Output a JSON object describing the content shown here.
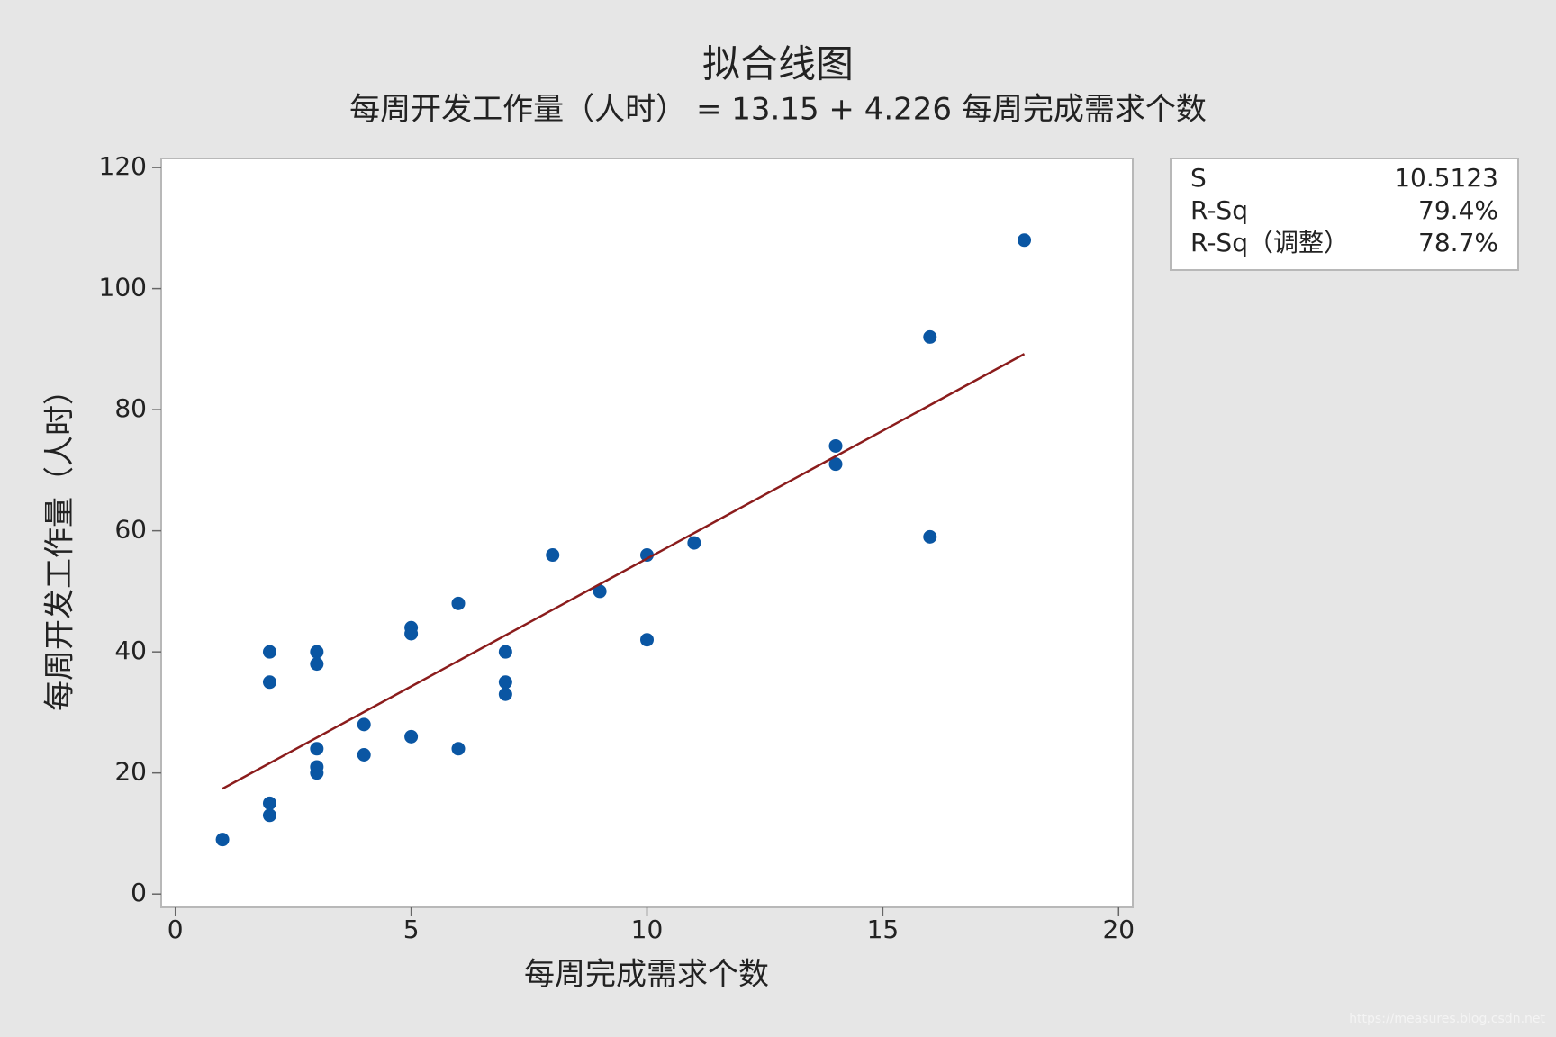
{
  "chart_data": {
    "type": "scatter",
    "title": "拟合线图",
    "subtitle": "每周开发工作量（人时） = 13.15 + 4.226 每周完成需求个数",
    "x_label": "每周完成需求个数",
    "y_label": "每周开发工作量（人时）",
    "xlim": [
      -0.3,
      20.3
    ],
    "ylim": [
      -2.2,
      121.5
    ],
    "xticks": [
      0,
      5,
      10,
      15,
      20
    ],
    "yticks": [
      0,
      20,
      40,
      60,
      80,
      100,
      120
    ],
    "series": [
      {
        "color": "#0a56a3",
        "x": [
          1,
          2,
          2,
          2,
          2,
          3,
          3,
          3,
          3,
          3,
          4,
          4,
          5,
          5,
          5,
          6,
          6,
          7,
          7,
          7,
          8,
          9,
          10,
          10,
          11,
          14,
          14,
          16,
          16,
          18
        ],
        "values": [
          9,
          40,
          35,
          15,
          13,
          40,
          38,
          24,
          21,
          20,
          28,
          23,
          44,
          43,
          26,
          48,
          24,
          40,
          35,
          33,
          56,
          50,
          56,
          42,
          58,
          74,
          71,
          92,
          59,
          108
        ]
      },
      {
        "type": "line",
        "color": "#8b1c1c",
        "x": [
          1,
          18
        ],
        "values": [
          17.4,
          89.2
        ]
      }
    ],
    "stats": [
      {
        "label": "S",
        "value": "10.5123"
      },
      {
        "label": "R-Sq",
        "value": "79.4%"
      },
      {
        "label": "R-Sq（调整）",
        "value": "78.7%"
      }
    ],
    "watermark": "https://measures.blog.csdn.net"
  }
}
